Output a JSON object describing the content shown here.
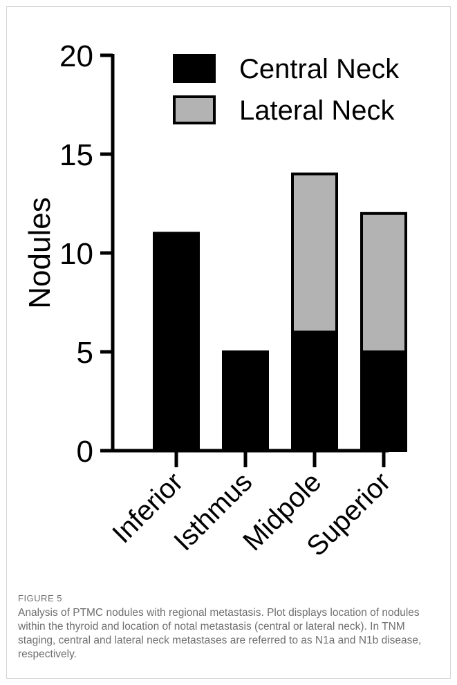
{
  "chart_data": {
    "type": "bar",
    "stacked": true,
    "categories": [
      "Inferior",
      "Isthmus",
      "Midpole",
      "Superior"
    ],
    "series": [
      {
        "name": "Central Neck",
        "values": [
          11,
          5,
          6,
          5
        ],
        "color": "#000000"
      },
      {
        "name": "Lateral Neck",
        "values": [
          0,
          0,
          8,
          7
        ],
        "color": "#b3b3b3"
      }
    ],
    "ylabel": "Nodules",
    "ylim": [
      0,
      20
    ],
    "yticks": [
      0,
      5,
      10,
      15,
      20
    ],
    "grid": false,
    "legend": "top-right"
  },
  "figure": {
    "label": "FIGURE 5",
    "caption": "Analysis of PTMC nodules with regional metastasis. Plot displays location of nodules within the thyroid and location of notal metastasis (central or lateral neck). In TNM staging, central and lateral neck metastases are referred to as N1a and N1b disease, respectively."
  }
}
